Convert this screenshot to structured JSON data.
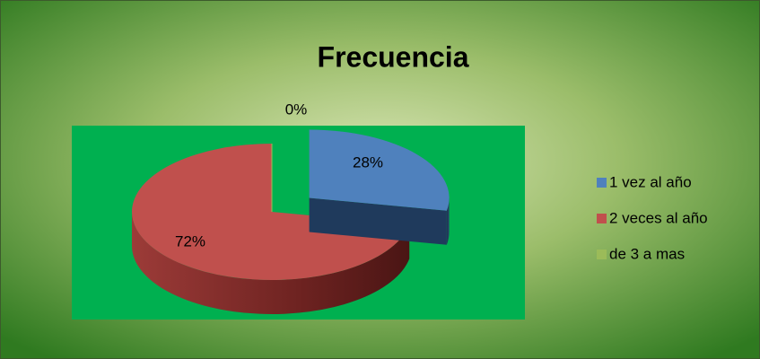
{
  "chart_data": {
    "type": "pie3d",
    "title": "Frecuencia",
    "categories": [
      "1 vez al año",
      "2 veces al año",
      "de 3 a mas"
    ],
    "values": [
      28,
      72,
      0
    ],
    "value_labels": [
      "28%",
      "72%",
      "0%"
    ],
    "colors": [
      "#4f81bd",
      "#c0504d",
      "#9bbb59"
    ],
    "legend": "right"
  }
}
